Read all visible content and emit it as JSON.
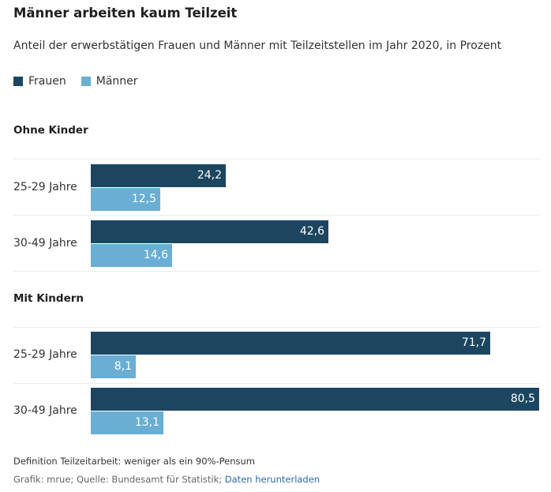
{
  "colors": {
    "frauen": "#1c4660",
    "maenner": "#6aaed3",
    "link": "#2a6cb0"
  },
  "title": "Männer arbeiten kaum Teilzeit",
  "subtitle": "Anteil der erwerbstätigen Frauen und Männer mit Teilzeitstellen im Jahr 2020, in Prozent",
  "legend": [
    {
      "label": "Frauen",
      "series": "frauen"
    },
    {
      "label": "Männer",
      "series": "maenner"
    }
  ],
  "chart_data": {
    "type": "bar",
    "orientation": "horizontal",
    "title": "Männer arbeiten kaum Teilzeit",
    "xlabel": "",
    "ylabel": "",
    "xlim": [
      0,
      80.5
    ],
    "groups": [
      {
        "name": "Ohne Kinder",
        "categories": [
          "25-29 Jahre",
          "30-49 Jahre"
        ],
        "series": [
          {
            "name": "Frauen",
            "values": [
              24.2,
              42.6
            ],
            "labels": [
              "24,2",
              "42,6"
            ]
          },
          {
            "name": "Männer",
            "values": [
              12.5,
              14.6
            ],
            "labels": [
              "12,5",
              "14,6"
            ]
          }
        ]
      },
      {
        "name": "Mit Kindern",
        "categories": [
          "25-29 Jahre",
          "30-49 Jahre"
        ],
        "series": [
          {
            "name": "Frauen",
            "values": [
              71.7,
              80.5
            ],
            "labels": [
              "71,7",
              "80,5"
            ]
          },
          {
            "name": "Männer",
            "values": [
              8.1,
              13.1
            ],
            "labels": [
              "8,1",
              "13,1"
            ]
          }
        ]
      }
    ]
  },
  "footnote": {
    "definition": "Definition Teilzeitarbeit: weniger als ein 90%-Pensum",
    "source": "Grafik: mrue; Quelle: Bundesamt für Statistik;",
    "download_link": "Daten herunterladen"
  }
}
